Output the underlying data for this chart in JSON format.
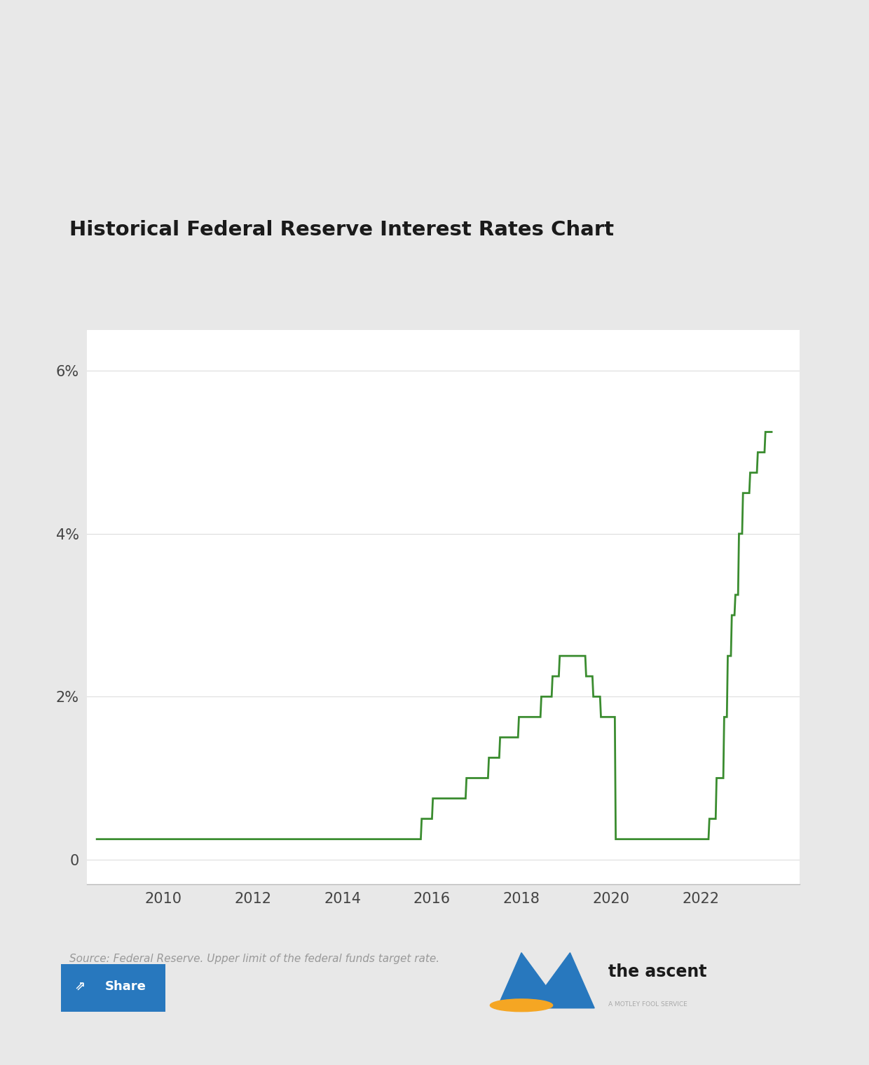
{
  "title": "Historical Federal Reserve Interest Rates Chart",
  "source_text": "Source: Federal Reserve. Upper limit of the federal funds target rate.",
  "line_color": "#3a8c2f",
  "line_width": 2.0,
  "background_color": "#ffffff",
  "outer_bg": "#e8e8e8",
  "card_bg": "#ffffff",
  "yticks": [
    0,
    2,
    4,
    6
  ],
  "ytick_labels": [
    "0",
    "2%",
    "4%",
    "6%"
  ],
  "xticks": [
    2010,
    2012,
    2014,
    2016,
    2018,
    2020,
    2022
  ],
  "xlim": [
    2008.3,
    2024.2
  ],
  "ylim": [
    -0.3,
    6.5
  ],
  "data": [
    [
      2008.5,
      0.25
    ],
    [
      2015.75,
      0.25
    ],
    [
      2015.77,
      0.5
    ],
    [
      2016.0,
      0.5
    ],
    [
      2016.02,
      0.75
    ],
    [
      2016.75,
      0.75
    ],
    [
      2016.77,
      1.0
    ],
    [
      2017.25,
      1.0
    ],
    [
      2017.27,
      1.25
    ],
    [
      2017.5,
      1.25
    ],
    [
      2017.52,
      1.5
    ],
    [
      2017.92,
      1.5
    ],
    [
      2017.94,
      1.75
    ],
    [
      2018.42,
      1.75
    ],
    [
      2018.44,
      2.0
    ],
    [
      2018.67,
      2.0
    ],
    [
      2018.69,
      2.25
    ],
    [
      2018.83,
      2.25
    ],
    [
      2018.85,
      2.5
    ],
    [
      2019.42,
      2.5
    ],
    [
      2019.44,
      2.25
    ],
    [
      2019.58,
      2.25
    ],
    [
      2019.6,
      2.0
    ],
    [
      2019.75,
      2.0
    ],
    [
      2019.77,
      1.75
    ],
    [
      2020.08,
      1.75
    ],
    [
      2020.1,
      0.25
    ],
    [
      2022.17,
      0.25
    ],
    [
      2022.19,
      0.5
    ],
    [
      2022.33,
      0.5
    ],
    [
      2022.35,
      1.0
    ],
    [
      2022.5,
      1.0
    ],
    [
      2022.52,
      1.75
    ],
    [
      2022.58,
      1.75
    ],
    [
      2022.6,
      2.5
    ],
    [
      2022.67,
      2.5
    ],
    [
      2022.69,
      3.0
    ],
    [
      2022.75,
      3.0
    ],
    [
      2022.77,
      3.25
    ],
    [
      2022.83,
      3.25
    ],
    [
      2022.85,
      4.0
    ],
    [
      2022.92,
      4.0
    ],
    [
      2022.94,
      4.5
    ],
    [
      2023.08,
      4.5
    ],
    [
      2023.1,
      4.75
    ],
    [
      2023.25,
      4.75
    ],
    [
      2023.27,
      5.0
    ],
    [
      2023.42,
      5.0
    ],
    [
      2023.44,
      5.25
    ],
    [
      2023.6,
      5.25
    ]
  ]
}
